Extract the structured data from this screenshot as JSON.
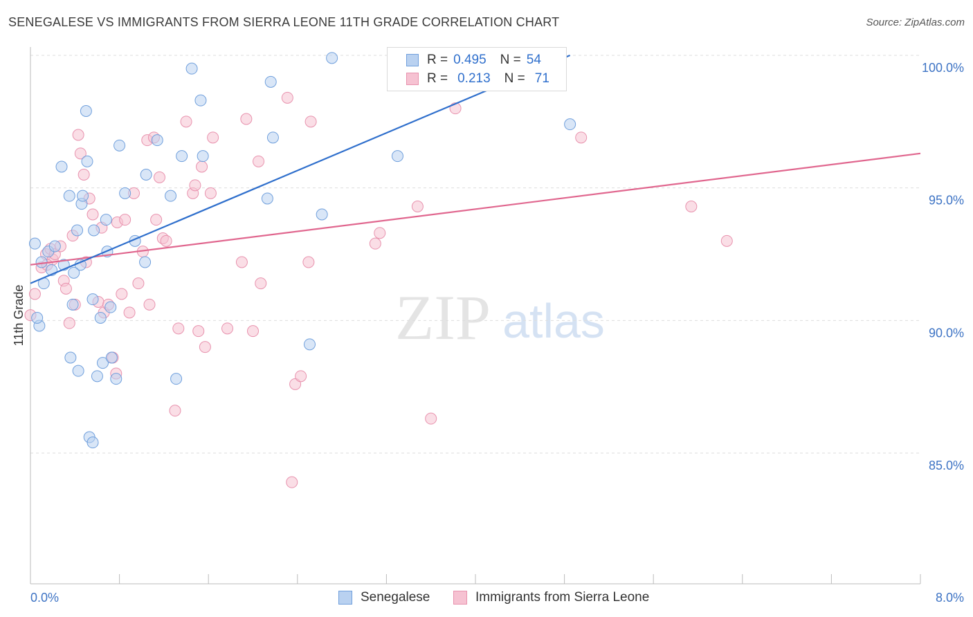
{
  "title": "SENEGALESE VS IMMIGRANTS FROM SIERRA LEONE 11TH GRADE CORRELATION CHART",
  "source": "Source: ZipAtlas.com",
  "watermark": {
    "zip": "ZIP",
    "atlas": "atlas"
  },
  "legend_top": {
    "rows": [
      {
        "r_label": "R =",
        "r_value": "0.495",
        "n_label": "N =",
        "n_value": "54"
      },
      {
        "r_label": "R =",
        "r_value": "0.213",
        "n_label": "N =",
        "n_value": "71"
      }
    ]
  },
  "colors": {
    "blue_fill": "#b9d1f0",
    "blue_stroke": "#6f9fdc",
    "blue_line": "#2f6fcc",
    "pink_fill": "#f6c2d2",
    "pink_stroke": "#e891ad",
    "pink_line": "#e0668e",
    "grid": "#dddddd",
    "tick_label": "#3d73c4"
  },
  "chart_data": {
    "type": "scatter",
    "title": "SENEGALESE VS IMMIGRANTS FROM SIERRA LEONE 11TH GRADE CORRELATION CHART",
    "xlabel": "",
    "ylabel": "11th Grade",
    "xlim": [
      0.0,
      8.0
    ],
    "ylim": [
      80.5,
      100.6
    ],
    "x_tick_labels": [
      "0.0%",
      "8.0%"
    ],
    "y_ticks": [
      85.0,
      90.0,
      95.0,
      100.0
    ],
    "y_tick_labels": [
      "85.0%",
      "90.0%",
      "95.0%",
      "100.0%"
    ],
    "grid": true,
    "legend_position": "top-center",
    "series": [
      {
        "name": "Senegalese",
        "color": "#6f9fdc",
        "R": 0.495,
        "N": 54,
        "trend": {
          "x": [
            0.0,
            4.85
          ],
          "y": [
            91.4,
            100.0
          ]
        },
        "points": [
          [
            0.5,
            97.9
          ],
          [
            1.45,
            99.5
          ],
          [
            1.53,
            98.3
          ],
          [
            2.16,
            99.0
          ],
          [
            2.71,
            99.9
          ],
          [
            0.04,
            92.9
          ],
          [
            0.08,
            89.8
          ],
          [
            0.1,
            92.2
          ],
          [
            0.12,
            91.4
          ],
          [
            0.16,
            92.6
          ],
          [
            0.19,
            91.9
          ],
          [
            0.22,
            92.8
          ],
          [
            0.3,
            92.1
          ],
          [
            0.35,
            94.7
          ],
          [
            0.28,
            95.8
          ],
          [
            0.38,
            90.6
          ],
          [
            0.42,
            93.4
          ],
          [
            0.45,
            92.1
          ],
          [
            0.46,
            94.4
          ],
          [
            0.47,
            94.7
          ],
          [
            0.51,
            96.0
          ],
          [
            0.36,
            88.6
          ],
          [
            0.43,
            88.1
          ],
          [
            0.39,
            91.8
          ],
          [
            0.56,
            90.8
          ],
          [
            0.57,
            93.4
          ],
          [
            0.6,
            87.9
          ],
          [
            0.63,
            90.1
          ],
          [
            0.65,
            88.4
          ],
          [
            0.68,
            93.8
          ],
          [
            0.69,
            92.6
          ],
          [
            0.72,
            90.5
          ],
          [
            0.73,
            88.6
          ],
          [
            0.77,
            87.8
          ],
          [
            0.8,
            96.6
          ],
          [
            0.85,
            94.8
          ],
          [
            0.94,
            93.0
          ],
          [
            1.03,
            92.2
          ],
          [
            1.04,
            95.5
          ],
          [
            1.14,
            96.8
          ],
          [
            1.26,
            94.7
          ],
          [
            1.36,
            96.2
          ],
          [
            1.31,
            87.8
          ],
          [
            1.55,
            96.2
          ],
          [
            2.13,
            94.6
          ],
          [
            2.18,
            96.9
          ],
          [
            2.62,
            94.0
          ],
          [
            2.51,
            89.1
          ],
          [
            3.3,
            96.2
          ],
          [
            4.85,
            97.4
          ],
          [
            0.53,
            85.6
          ],
          [
            0.56,
            85.4
          ],
          [
            0.06,
            90.1
          ],
          [
            3.45,
            99.0
          ]
        ]
      },
      {
        "name": "Immigrants from Sierra Leone",
        "color": "#e891ad",
        "R": 0.213,
        "N": 71,
        "trend": {
          "x": [
            0.0,
            8.0
          ],
          "y": [
            92.1,
            96.3
          ]
        },
        "points": [
          [
            0.0,
            90.2
          ],
          [
            0.04,
            91.0
          ],
          [
            0.1,
            92.0
          ],
          [
            0.14,
            92.5
          ],
          [
            0.18,
            92.7
          ],
          [
            0.2,
            92.3
          ],
          [
            0.22,
            92.5
          ],
          [
            0.27,
            92.8
          ],
          [
            0.3,
            91.5
          ],
          [
            0.32,
            91.2
          ],
          [
            0.35,
            89.9
          ],
          [
            0.38,
            93.2
          ],
          [
            0.4,
            90.6
          ],
          [
            0.43,
            97.0
          ],
          [
            0.45,
            96.3
          ],
          [
            0.48,
            95.5
          ],
          [
            0.5,
            92.2
          ],
          [
            0.53,
            94.6
          ],
          [
            0.56,
            94.0
          ],
          [
            0.61,
            90.7
          ],
          [
            0.64,
            93.5
          ],
          [
            0.66,
            90.3
          ],
          [
            0.7,
            90.6
          ],
          [
            0.74,
            88.6
          ],
          [
            0.77,
            88.0
          ],
          [
            0.78,
            93.7
          ],
          [
            0.82,
            91.0
          ],
          [
            0.85,
            93.8
          ],
          [
            0.89,
            90.3
          ],
          [
            0.93,
            94.8
          ],
          [
            0.97,
            91.4
          ],
          [
            1.01,
            92.6
          ],
          [
            1.05,
            96.8
          ],
          [
            1.07,
            90.6
          ],
          [
            1.11,
            96.9
          ],
          [
            1.13,
            93.8
          ],
          [
            1.16,
            95.4
          ],
          [
            1.19,
            93.1
          ],
          [
            1.22,
            93.0
          ],
          [
            1.3,
            86.6
          ],
          [
            1.33,
            89.7
          ],
          [
            1.4,
            97.5
          ],
          [
            1.46,
            94.8
          ],
          [
            1.48,
            95.1
          ],
          [
            1.51,
            89.6
          ],
          [
            1.54,
            95.8
          ],
          [
            1.57,
            89.0
          ],
          [
            1.62,
            94.8
          ],
          [
            1.64,
            96.9
          ],
          [
            1.77,
            89.7
          ],
          [
            1.9,
            92.2
          ],
          [
            1.94,
            97.6
          ],
          [
            2.0,
            89.6
          ],
          [
            2.05,
            96.0
          ],
          [
            2.07,
            91.4
          ],
          [
            2.31,
            98.4
          ],
          [
            2.35,
            83.9
          ],
          [
            2.38,
            87.6
          ],
          [
            2.43,
            87.9
          ],
          [
            2.5,
            92.2
          ],
          [
            2.52,
            97.5
          ],
          [
            3.1,
            92.9
          ],
          [
            3.14,
            93.3
          ],
          [
            3.48,
            94.3
          ],
          [
            3.6,
            86.3
          ],
          [
            3.82,
            98.0
          ],
          [
            4.23,
            100.0
          ],
          [
            4.95,
            96.9
          ],
          [
            5.94,
            94.3
          ],
          [
            6.26,
            93.0
          ],
          [
            0.15,
            92.1
          ]
        ]
      }
    ]
  },
  "bottom_legend": [
    "Senegalese",
    "Immigrants from Sierra Leone"
  ]
}
